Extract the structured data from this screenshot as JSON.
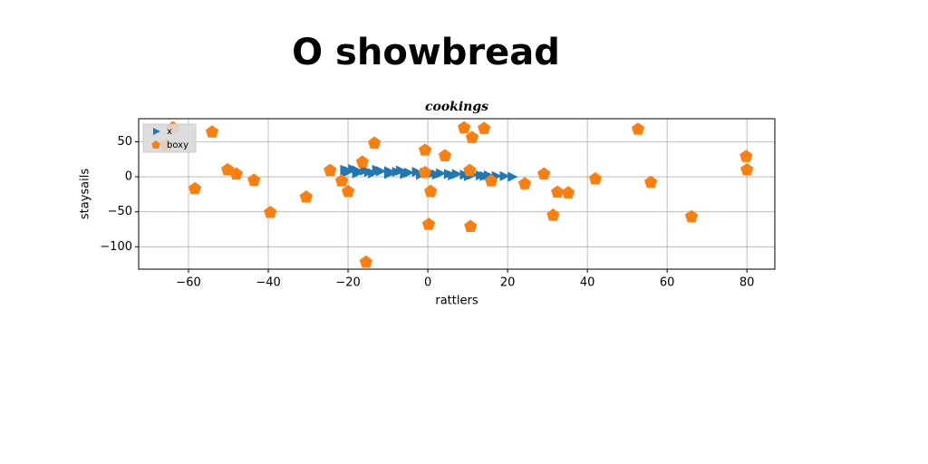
{
  "chart_data": {
    "type": "scatter",
    "suptitle": "O showbread",
    "title": "cookings",
    "xlabel": "rattlers",
    "ylabel": "staysails",
    "xlim": [
      -72.5,
      87
    ],
    "ylim": [
      -132,
      83
    ],
    "xticks": [
      {
        "value": -60,
        "label": "−60"
      },
      {
        "value": -40,
        "label": "−40"
      },
      {
        "value": -20,
        "label": "−20"
      },
      0,
      20,
      40,
      60,
      80
    ],
    "yticks": [
      {
        "value": -100,
        "label": "−100"
      },
      {
        "value": -50,
        "label": "−50"
      },
      0,
      50
    ],
    "grid": true,
    "legend": "upper left",
    "series": [
      {
        "name": "x",
        "color": "#1f77b4",
        "marker": "triangle-right",
        "x": [
          -21,
          -20,
          -19,
          -18,
          -16,
          -15,
          -13,
          -12,
          -10,
          -8,
          -7,
          -5,
          -3,
          -1,
          1,
          3,
          5,
          7,
          9,
          11,
          13,
          15,
          17,
          19,
          21,
          -21,
          -18,
          -14,
          -10,
          -6,
          -2,
          2,
          6,
          10,
          14
        ],
        "y": [
          10,
          8,
          11,
          9,
          9,
          7,
          10,
          8,
          8,
          7,
          9,
          6,
          7,
          6,
          5,
          5,
          4,
          4,
          3,
          3,
          2,
          2,
          1,
          1,
          0,
          5,
          5,
          5,
          4,
          4,
          3,
          3,
          2,
          1,
          1
        ]
      },
      {
        "name": "boxy",
        "color": "#ff7f0e",
        "marker": "pentagon",
        "x": [
          -63.9,
          -65.5,
          -54.1,
          -58.4,
          -50.2,
          -48,
          -43.6,
          -39.5,
          -30.5,
          -24.5,
          -21.6,
          -20,
          -16.4,
          -15.5,
          -13.4,
          -0.7,
          -0.7,
          0.7,
          0.2,
          4.3,
          9.1,
          11.1,
          14.1,
          10.5,
          10.7,
          15.9,
          24.3,
          29.1,
          32.5,
          31.4,
          35.2,
          42,
          52.7,
          55.9,
          66.1,
          79.8,
          80
        ],
        "y": [
          70,
          45,
          64,
          -17,
          10,
          4,
          -5,
          -51,
          -29,
          9,
          -6,
          -21,
          21,
          -122,
          48,
          38,
          6,
          -21,
          -68,
          30,
          70,
          56,
          69,
          9,
          -71,
          -6,
          -10,
          4,
          -22,
          -55,
          -23,
          -3,
          68,
          -8,
          -57,
          29,
          10
        ]
      }
    ]
  }
}
